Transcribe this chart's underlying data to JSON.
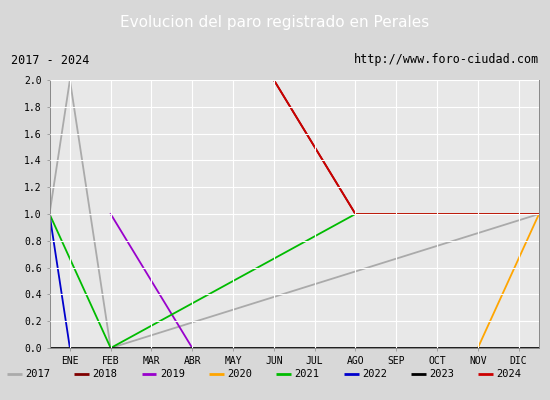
{
  "title": "Evolucion del paro registrado en Perales",
  "subtitle_left": "2017 - 2024",
  "subtitle_right": "http://www.foro-ciudad.com",
  "xlabel_months": [
    "ENE",
    "FEB",
    "MAR",
    "ABR",
    "MAY",
    "JUN",
    "JUL",
    "AGO",
    "SEP",
    "OCT",
    "NOV",
    "DIC"
  ],
  "ylim": [
    0.0,
    2.0
  ],
  "yticks": [
    0.0,
    0.2,
    0.4,
    0.6,
    0.8,
    1.0,
    1.2,
    1.4,
    1.6,
    1.8,
    2.0
  ],
  "background_color": "#d8d8d8",
  "plot_bg_color": "#e8e8e8",
  "title_bg_color": "#5b8dd9",
  "title_text_color": "#ffffff",
  "series": [
    {
      "label": "2017",
      "color": "#aaaaaa",
      "data": [
        [
          0,
          1.0
        ],
        [
          1,
          2.0
        ],
        [
          2,
          0.0
        ],
        [
          12,
          1.0
        ]
      ]
    },
    {
      "label": "2018",
      "color": "#800000",
      "data": [
        [
          0,
          2.0
        ],
        [
          6,
          2.0
        ],
        [
          8,
          1.0
        ],
        [
          12,
          1.0
        ]
      ]
    },
    {
      "label": "2019",
      "color": "#9900cc",
      "data": [
        [
          2,
          1.0
        ],
        [
          4,
          0.0
        ]
      ]
    },
    {
      "label": "2020",
      "color": "#ffa500",
      "data": [
        [
          11,
          0.0
        ],
        [
          12,
          1.0
        ]
      ]
    },
    {
      "label": "2021",
      "color": "#00bb00",
      "data": [
        [
          0,
          1.0
        ],
        [
          2,
          0.0
        ],
        [
          8,
          1.0
        ],
        [
          12,
          1.0
        ]
      ]
    },
    {
      "label": "2022",
      "color": "#0000cc",
      "data": [
        [
          0,
          1.0
        ],
        [
          1,
          0.0
        ]
      ]
    },
    {
      "label": "2023",
      "color": "#000000",
      "data": [
        [
          0,
          0.0
        ],
        [
          12,
          0.0
        ]
      ]
    },
    {
      "label": "2024",
      "color": "#cc0000",
      "data": [
        [
          6,
          2.0
        ],
        [
          8,
          1.0
        ],
        [
          12,
          1.0
        ]
      ]
    }
  ],
  "legend_line_color": "#888888"
}
